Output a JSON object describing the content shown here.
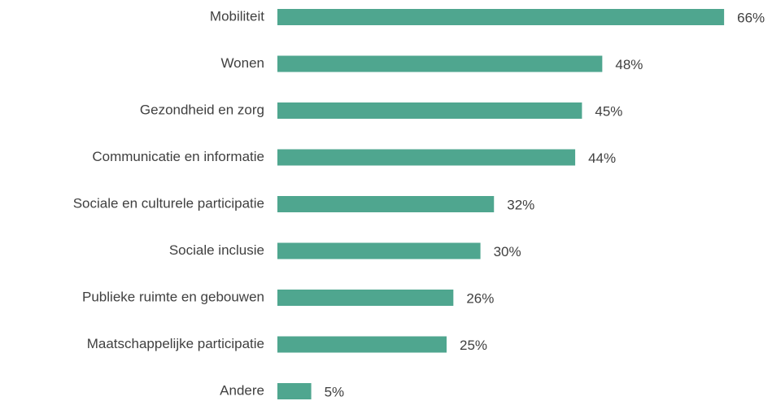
{
  "chart_data": {
    "type": "bar",
    "orientation": "horizontal",
    "categories": [
      "Mobiliteit",
      "Wonen",
      "Gezondheid en zorg",
      "Communicatie en informatie",
      "Sociale en culturele participatie",
      "Sociale inclusie",
      "Publieke ruimte en gebouwen",
      "Maatschappelijke participatie",
      "Andere"
    ],
    "values": [
      66,
      48,
      45,
      44,
      32,
      30,
      26,
      25,
      5
    ],
    "value_labels": [
      "66%",
      "48%",
      "45%",
      "44%",
      "32%",
      "30%",
      "26%",
      "25%",
      "5%"
    ],
    "color": "#4fa68f"
  }
}
